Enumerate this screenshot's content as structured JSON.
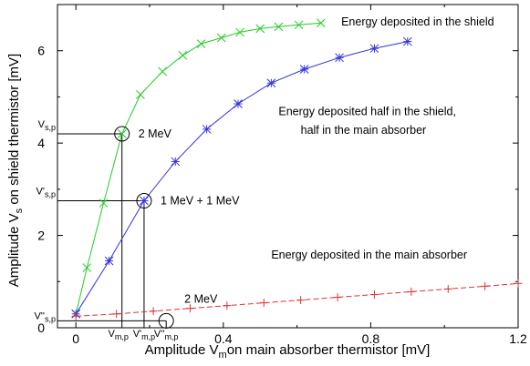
{
  "chart_data": {
    "type": "line",
    "title": "",
    "xlabel": "Amplitude V_m on main absorber thermistor [mV]",
    "ylabel": "Amplitude V_s on shield thermistor [mV]",
    "xlim": [
      -0.05,
      1.2
    ],
    "ylim": [
      0,
      7
    ],
    "x_ticks": [
      {
        "value": 0,
        "label": "0"
      },
      {
        "value": 0.4,
        "label": "0.4"
      },
      {
        "value": 0.8,
        "label": "0.8"
      },
      {
        "value": 1.2,
        "label": "1.2"
      }
    ],
    "y_ticks": [
      {
        "value": 0,
        "label": "0"
      },
      {
        "value": 2,
        "label": "2"
      },
      {
        "value": 4,
        "label": "4"
      },
      {
        "value": 6,
        "label": "6"
      }
    ],
    "minor_x_ticks": [
      0.2,
      0.6,
      1.0
    ],
    "minor_y_ticks": [
      1,
      3,
      5
    ],
    "grid": false,
    "legend": "none",
    "series": [
      {
        "annotation": "Energy deposited in the shield",
        "color": "#22cc22",
        "marker": "x",
        "x": [
          0.0,
          0.03,
          0.075,
          0.125,
          0.175,
          0.235,
          0.29,
          0.34,
          0.395,
          0.445,
          0.5,
          0.55,
          0.605,
          0.665
        ],
        "y": [
          0.3,
          1.3,
          2.7,
          4.2,
          5.05,
          5.55,
          5.9,
          6.15,
          6.28,
          6.4,
          6.48,
          6.52,
          6.56,
          6.6
        ]
      },
      {
        "annotation": "Energy deposited half in the shield, half in the main absorber",
        "color": "#3333dd",
        "marker": "*",
        "x": [
          0.0,
          0.09,
          0.185,
          0.27,
          0.355,
          0.44,
          0.53,
          0.62,
          0.715,
          0.81,
          0.9
        ],
        "y": [
          0.3,
          1.45,
          2.75,
          3.6,
          4.3,
          4.85,
          5.3,
          5.6,
          5.85,
          6.05,
          6.2
        ]
      },
      {
        "annotation": "Energy deposited in the main absorber",
        "color": "#dd3333",
        "marker": "+",
        "x": [
          0.0,
          0.11,
          0.21,
          0.31,
          0.41,
          0.51,
          0.61,
          0.71,
          0.81,
          0.91,
          1.01,
          1.11,
          1.2
        ],
        "y": [
          0.25,
          0.3,
          0.36,
          0.42,
          0.48,
          0.54,
          0.6,
          0.66,
          0.72,
          0.78,
          0.84,
          0.9,
          0.96
        ]
      }
    ],
    "markers": [
      {
        "label": "2 MeV",
        "x": 0.125,
        "y": 4.2,
        "x_symbol": "V_m,p",
        "y_symbol": "V_s,p"
      },
      {
        "label": "1 MeV + 1 MeV",
        "x": 0.185,
        "y": 2.75,
        "x_symbol": "V'_m,p",
        "y_symbol": "V'_s,p"
      },
      {
        "label": "2 MeV",
        "x": 0.245,
        "y": 0.15,
        "x_symbol": "V''_m,p",
        "y_symbol": "V''_s,p"
      }
    ],
    "annotations": [
      {
        "text": "Energy deposited in the shield",
        "x": 0.72,
        "y": 6.55
      },
      {
        "text": "Energy deposited half in the shield,",
        "x": 0.55,
        "y": 4.6
      },
      {
        "text": "half in the main absorber",
        "x": 0.61,
        "y": 4.2
      },
      {
        "text": "Energy deposited in the main absorber",
        "x": 0.53,
        "y": 1.5
      }
    ]
  }
}
